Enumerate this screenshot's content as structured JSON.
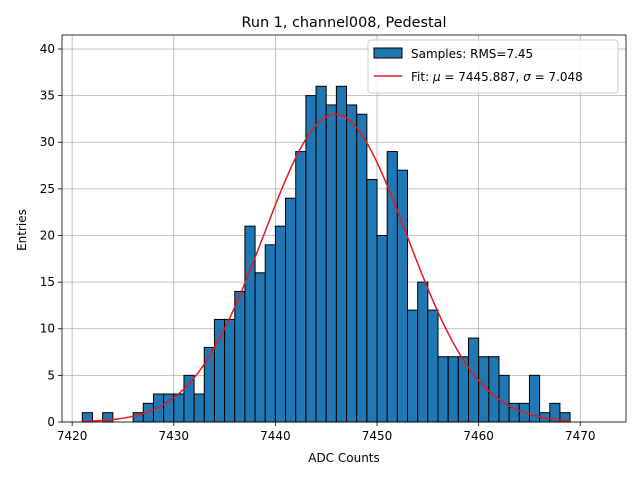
{
  "chart_data": {
    "type": "bar",
    "title": "Run 1, channel008, Pedestal",
    "xlabel": "ADC Counts",
    "ylabel": "Entries",
    "xlim": [
      7419,
      7474.5
    ],
    "ylim": [
      0,
      41.5
    ],
    "x_ticks": [
      7420,
      7430,
      7440,
      7450,
      7460,
      7470
    ],
    "y_ticks": [
      0,
      5,
      10,
      15,
      20,
      25,
      30,
      35,
      40
    ],
    "grid": true,
    "legend_position": "top-right",
    "bin_width": 1,
    "bin_start": 7421,
    "counts": [
      1,
      0,
      1,
      0,
      0,
      1,
      2,
      3,
      3,
      3,
      5,
      3,
      8,
      11,
      11,
      14,
      21,
      16,
      19,
      21,
      24,
      29,
      35,
      36,
      34,
      36,
      34,
      33,
      26,
      20,
      29,
      27,
      12,
      15,
      12,
      7,
      7,
      7,
      9,
      7,
      7,
      5,
      2,
      2,
      5,
      1,
      2,
      1
    ],
    "bar_color": "#1f77b4",
    "fit_color": "#e41a1c",
    "fit": {
      "mu": 7445.887,
      "sigma": 7.048,
      "peak": 33.0
    },
    "legend": {
      "samples_label": "Samples: RMS=7.45",
      "fit_prefix": "Fit: ",
      "mu_symbol": "μ",
      "mu_text": " = 7445.887, ",
      "sigma_symbol": "σ",
      "sigma_text": " = 7.048"
    }
  }
}
